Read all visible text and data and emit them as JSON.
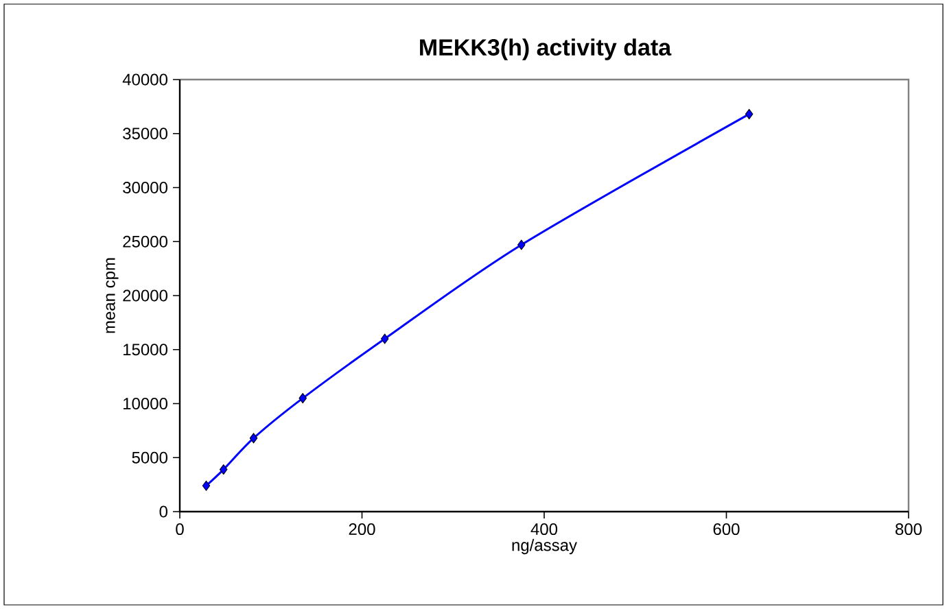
{
  "chart_data": {
    "type": "line",
    "title": "MEKK3(h) activity data",
    "xlabel": "ng/assay",
    "ylabel": "mean cpm",
    "x": [
      29,
      48,
      81,
      135,
      225,
      375,
      625
    ],
    "values": [
      2400,
      3900,
      6800,
      10500,
      16000,
      24700,
      36800
    ],
    "color": "#0000ff",
    "marker": "diamond",
    "line_style": "solid",
    "xlim": [
      0,
      800
    ],
    "ylim": [
      0,
      40000
    ],
    "xticks": [
      0,
      200,
      400,
      600,
      800
    ],
    "yticks": [
      0,
      5000,
      10000,
      15000,
      20000,
      25000,
      30000,
      35000,
      40000
    ]
  }
}
